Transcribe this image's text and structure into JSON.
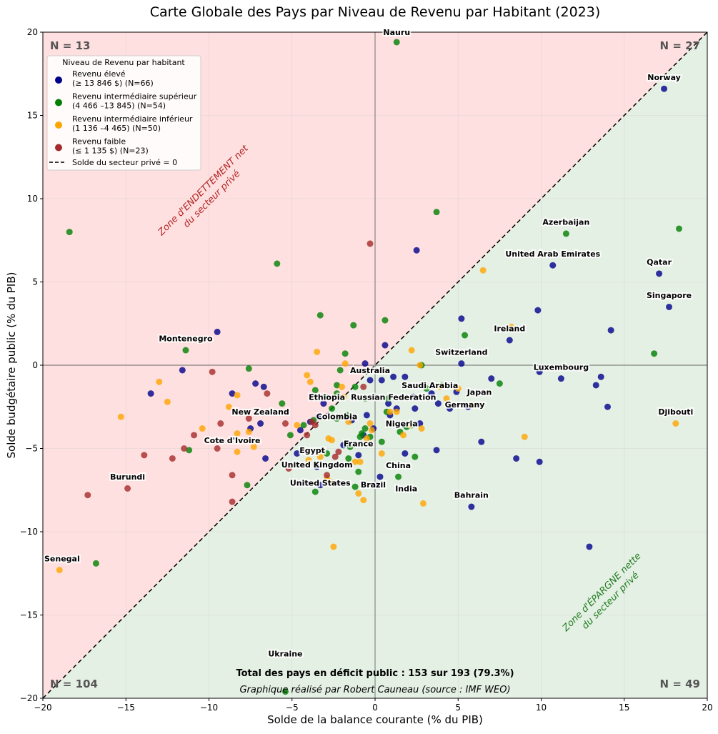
{
  "chart_data": {
    "type": "scatter",
    "title": "Carte Globale des Pays par Niveau de Revenu par Habitant (2023)",
    "xlabel": "Solde de la balance courante (% du PIB)",
    "ylabel": "Solde budgétaire public (% du PIB)",
    "xlim": [
      -20,
      20
    ],
    "ylim": [
      -20,
      20
    ],
    "xticks": [
      -20,
      -15,
      -10,
      -5,
      0,
      5,
      10,
      15,
      20
    ],
    "yticks": [
      -20,
      -15,
      -10,
      -5,
      0,
      5,
      10,
      15,
      20
    ],
    "grid": true,
    "legend": {
      "title": "Niveau de Revenu par habitant",
      "placement": "top-left",
      "line_label": "Solde du secteur privé = 0"
    },
    "series": [
      {
        "name": "Revenu élevé",
        "range": "(≥ 13 846 $) (N=66)",
        "color": "#00008B",
        "points": [
          [
            17.4,
            16.6
          ],
          [
            2.5,
            6.9
          ],
          [
            10.7,
            6.0
          ],
          [
            17.1,
            5.5
          ],
          [
            17.7,
            3.5
          ],
          [
            9.8,
            3.3
          ],
          [
            5.2,
            2.8
          ],
          [
            14.2,
            2.1
          ],
          [
            8.1,
            1.5
          ],
          [
            0.6,
            1.2
          ],
          [
            -9.5,
            2.0
          ],
          [
            5.2,
            0.1
          ],
          [
            -0.6,
            0.1
          ],
          [
            -11.6,
            -0.3
          ],
          [
            9.9,
            -0.4
          ],
          [
            7.0,
            -0.8
          ],
          [
            11.2,
            -0.8
          ],
          [
            13.6,
            -0.7
          ],
          [
            13.3,
            -1.2
          ],
          [
            1.1,
            -0.7
          ],
          [
            1.8,
            -0.7
          ],
          [
            0.4,
            -0.9
          ],
          [
            -0.3,
            -0.9
          ],
          [
            -7.2,
            -1.1
          ],
          [
            -6.7,
            -1.3
          ],
          [
            -13.5,
            -1.7
          ],
          [
            -8.6,
            -1.7
          ],
          [
            0.8,
            -2.3
          ],
          [
            3.8,
            -2.3
          ],
          [
            2.4,
            -2.6
          ],
          [
            1.3,
            -2.6
          ],
          [
            4.5,
            -2.6
          ],
          [
            5.6,
            -2.5
          ],
          [
            14.0,
            -2.5
          ],
          [
            0.9,
            -3.0
          ],
          [
            -0.5,
            -3.0
          ],
          [
            -1.7,
            -3.1
          ],
          [
            -3.4,
            -3.1
          ],
          [
            -1.4,
            -3.3
          ],
          [
            -6.9,
            -3.5
          ],
          [
            -7.5,
            -3.8
          ],
          [
            -0.1,
            -3.8
          ],
          [
            -4.5,
            -3.9
          ],
          [
            -3.9,
            -3.4
          ],
          [
            2.7,
            -3.5
          ],
          [
            -0.7,
            -4.2
          ],
          [
            6.4,
            -4.6
          ],
          [
            3.7,
            -5.1
          ],
          [
            1.8,
            -5.3
          ],
          [
            -1.0,
            -5.4
          ],
          [
            -6.6,
            -5.6
          ],
          [
            8.5,
            -5.6
          ],
          [
            9.9,
            -5.8
          ],
          [
            -3.5,
            -6.1
          ],
          [
            0.3,
            -6.7
          ],
          [
            0.1,
            -7.2
          ],
          [
            -3.3,
            -7.2
          ],
          [
            5.8,
            -8.5
          ],
          [
            12.9,
            -10.9
          ],
          [
            -3.1,
            -2.3
          ],
          [
            2.3,
            -1.9
          ],
          [
            3.4,
            -1.7
          ],
          [
            -1.9,
            -4.8
          ],
          [
            1.8,
            -3.6
          ],
          [
            4.9,
            -1.6
          ],
          [
            -4.7,
            -5.3
          ]
        ]
      },
      {
        "name": "Revenu intermédiaire supérieur",
        "range": "(4 466 –13 845) (N=54)",
        "color": "#007F00",
        "points": [
          [
            1.3,
            19.4
          ],
          [
            -18.4,
            8.0
          ],
          [
            3.7,
            9.2
          ],
          [
            18.3,
            8.2
          ],
          [
            11.5,
            7.9
          ],
          [
            -5.9,
            6.1
          ],
          [
            -3.3,
            3.0
          ],
          [
            -1.3,
            2.4
          ],
          [
            0.6,
            2.7
          ],
          [
            5.4,
            1.8
          ],
          [
            16.8,
            0.7
          ],
          [
            -1.8,
            0.7
          ],
          [
            -11.4,
            0.9
          ],
          [
            -7.6,
            -0.2
          ],
          [
            2.8,
            0.0
          ],
          [
            -2.1,
            -0.3
          ],
          [
            7.5,
            -1.1
          ],
          [
            -2.3,
            -1.2
          ],
          [
            -3.6,
            -1.5
          ],
          [
            -1.2,
            -1.3
          ],
          [
            -2.3,
            -1.7
          ],
          [
            -0.6,
            -2.0
          ],
          [
            -5.6,
            -2.3
          ],
          [
            0.7,
            -2.8
          ],
          [
            -2.3,
            -3.2
          ],
          [
            -3.7,
            -3.3
          ],
          [
            -0.6,
            -3.8
          ],
          [
            -0.3,
            -4.3
          ],
          [
            1.5,
            -4.0
          ],
          [
            -5.1,
            -4.2
          ],
          [
            0.4,
            -4.6
          ],
          [
            -11.2,
            -5.1
          ],
          [
            2.4,
            -5.5
          ],
          [
            -1.6,
            -5.6
          ],
          [
            1.4,
            -6.7
          ],
          [
            -7.7,
            -7.2
          ],
          [
            -3.6,
            -7.6
          ],
          [
            -16.8,
            -11.9
          ],
          [
            -5.4,
            -19.6
          ],
          [
            -1.7,
            -3.0
          ],
          [
            -0.8,
            -4.1
          ],
          [
            -1.2,
            -7.3
          ],
          [
            3.1,
            -1.4
          ],
          [
            -2.9,
            -5.3
          ],
          [
            1.9,
            -3.7
          ],
          [
            -3.0,
            -1.9
          ],
          [
            -1.5,
            -4.9
          ],
          [
            0.8,
            -2.0
          ],
          [
            2.2,
            -3.6
          ],
          [
            -4.3,
            -3.6
          ],
          [
            4.0,
            -1.2
          ],
          [
            -0.9,
            -4.3
          ],
          [
            -2.6,
            -2.6
          ],
          [
            -1.0,
            -6.4
          ]
        ]
      },
      {
        "name": "Revenu intermédiaire inférieur",
        "range": "(1 136 –4 465) (N=50)",
        "color": "#FFA500",
        "points": [
          [
            6.5,
            5.7
          ],
          [
            -3.5,
            0.8
          ],
          [
            2.2,
            0.9
          ],
          [
            8.2,
            2.3
          ],
          [
            -1.8,
            0.1
          ],
          [
            2.7,
            0.0
          ],
          [
            -4.1,
            -0.6
          ],
          [
            -3.9,
            -1.0
          ],
          [
            -13.0,
            -1.0
          ],
          [
            -2.0,
            -1.3
          ],
          [
            -8.3,
            -1.8
          ],
          [
            -12.5,
            -2.2
          ],
          [
            -8.8,
            -2.5
          ],
          [
            5.9,
            -2.4
          ],
          [
            1.3,
            -2.8
          ],
          [
            -15.3,
            -3.1
          ],
          [
            -1.6,
            -3.4
          ],
          [
            -0.3,
            -3.5
          ],
          [
            2.8,
            -3.8
          ],
          [
            -10.4,
            -3.8
          ],
          [
            -4.7,
            -3.6
          ],
          [
            -8.3,
            -4.1
          ],
          [
            -7.6,
            -4.0
          ],
          [
            1.7,
            -4.2
          ],
          [
            9.0,
            -4.3
          ],
          [
            -2.8,
            -4.4
          ],
          [
            -2.6,
            -4.5
          ],
          [
            -7.3,
            -4.9
          ],
          [
            -8.3,
            -5.2
          ],
          [
            0.4,
            -5.3
          ],
          [
            -4.0,
            -5.7
          ],
          [
            -1.2,
            -5.8
          ],
          [
            -0.9,
            -5.8
          ],
          [
            -2.7,
            -7.0
          ],
          [
            -1.0,
            -7.7
          ],
          [
            -0.7,
            -8.1
          ],
          [
            2.9,
            -8.3
          ],
          [
            -2.5,
            -10.9
          ],
          [
            18.1,
            -3.5
          ],
          [
            -19.0,
            -12.3
          ],
          [
            3.9,
            -1.3
          ],
          [
            5.0,
            -1.4
          ],
          [
            -1.9,
            -1.9
          ],
          [
            0.9,
            -2.8
          ],
          [
            -0.5,
            -4.4
          ],
          [
            -2.9,
            -6.8
          ],
          [
            2.1,
            -3.6
          ],
          [
            4.3,
            -2.0
          ],
          [
            -3.3,
            -5.5
          ],
          [
            -0.2,
            -3.9
          ]
        ]
      },
      {
        "name": "Revenu faible",
        "range": "(≤ 1 135 $) (N=23)",
        "color": "#A52A2A",
        "points": [
          [
            -0.3,
            7.3
          ],
          [
            -9.8,
            -0.4
          ],
          [
            -0.7,
            -1.3
          ],
          [
            -6.5,
            -1.7
          ],
          [
            -7.6,
            -3.2
          ],
          [
            -9.3,
            -3.5
          ],
          [
            -5.4,
            -3.5
          ],
          [
            -3.8,
            -3.4
          ],
          [
            -10.9,
            -4.2
          ],
          [
            -4.1,
            -4.2
          ],
          [
            -11.5,
            -5.0
          ],
          [
            -9.5,
            -5.0
          ],
          [
            -13.9,
            -5.4
          ],
          [
            -12.2,
            -5.6
          ],
          [
            -2.2,
            -5.2
          ],
          [
            -8.6,
            -6.6
          ],
          [
            -14.9,
            -7.4
          ],
          [
            -17.3,
            -7.8
          ],
          [
            -8.6,
            -8.2
          ],
          [
            -2.9,
            -6.6
          ],
          [
            -3.6,
            -3.6
          ],
          [
            -2.4,
            -5.5
          ],
          [
            -5.2,
            -6.2
          ]
        ]
      }
    ],
    "annotations": [
      {
        "text": "Nauru",
        "x": 1.3,
        "y": 20.0
      },
      {
        "text": "Norway",
        "x": 17.4,
        "y": 17.3
      },
      {
        "text": "Azerbaijan",
        "x": 11.5,
        "y": 8.6
      },
      {
        "text": "United Arab Emirates",
        "x": 10.7,
        "y": 6.7
      },
      {
        "text": "Qatar",
        "x": 17.1,
        "y": 6.2
      },
      {
        "text": "Singapore",
        "x": 17.7,
        "y": 4.2
      },
      {
        "text": "Ireland",
        "x": 8.1,
        "y": 2.2
      },
      {
        "text": "Switzerland",
        "x": 5.2,
        "y": 0.8
      },
      {
        "text": "Montenegro",
        "x": -11.4,
        "y": 1.6
      },
      {
        "text": "Australia",
        "x": -0.3,
        "y": -0.3
      },
      {
        "text": "Luxembourg",
        "x": 11.2,
        "y": -0.1
      },
      {
        "text": "Saudi Arabia",
        "x": 3.3,
        "y": -1.2
      },
      {
        "text": "Japan",
        "x": 3.7,
        "y": -1.6
      },
      {
        "text": "Germany",
        "x": 5.4,
        "y": -1.8
      },
      {
        "text": "Russian Federation",
        "x": 2.4,
        "y": -1.9
      },
      {
        "text": "Ethiopia",
        "x": -2.9,
        "y": -1.9
      },
      {
        "text": "Colombia",
        "x": -2.3,
        "y": -2.5
      },
      {
        "text": "New Zealand",
        "x": -6.9,
        "y": -2.8
      },
      {
        "text": "Djibouti",
        "x": 18.1,
        "y": -2.8
      },
      {
        "text": "Nigeria",
        "x": 1.6,
        "y": -3.5
      },
      {
        "text": "Cote d'Ivoire",
        "x": -8.6,
        "y": -4.5
      },
      {
        "text": "France",
        "x": -1.0,
        "y": -4.7
      },
      {
        "text": "Egypt",
        "x": -1.2,
        "y": -5.1
      },
      {
        "text": "United Kingdom",
        "x": -3.5,
        "y": -5.4
      },
      {
        "text": "China",
        "x": 1.4,
        "y": -6.0
      },
      {
        "text": "United States",
        "x": -3.3,
        "y": -6.5
      },
      {
        "text": "Brazil",
        "x": -1.4,
        "y": -6.6
      },
      {
        "text": "India",
        "x": -0.7,
        "y": -7.4
      },
      {
        "text": "Bahrain",
        "x": 5.8,
        "y": -7.8
      },
      {
        "text": "Burundi",
        "x": -14.9,
        "y": -6.7
      },
      {
        "text": "Senegal",
        "x": -19.0,
        "y": -11.6
      },
      {
        "text": "Ukraine",
        "x": -5.4,
        "y": -19.0
      }
    ],
    "zones": {
      "debt": [
        "Zone d'ENDETTEMENT net",
        "du secteur privé"
      ],
      "savings": [
        "Zone d'ÉPARGNE nette",
        "du secteur privé"
      ],
      "debt_color": "#FFE0E0",
      "savings_color": "#E5F0E5"
    },
    "corner_counts": {
      "top_left": "N = 13",
      "top_right": "N = 27",
      "bottom_left": "N = 104",
      "bottom_right": "N = 49"
    },
    "footer": {
      "total": "Total des pays en déficit public : 153 sur 193 (79.3%)",
      "credit": "Graphique réalisé par Robert Cauneau (source : IMF WEO)"
    }
  }
}
